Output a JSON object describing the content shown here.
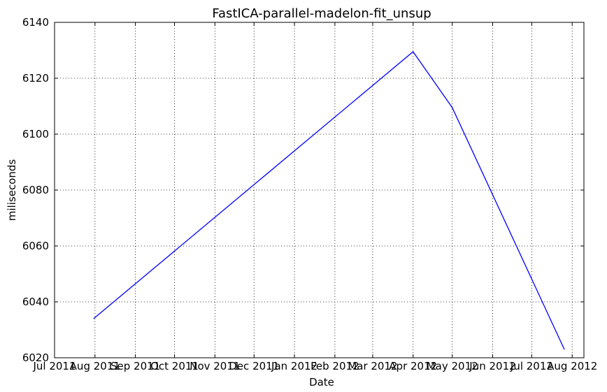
{
  "chart_data": {
    "type": "line",
    "title": "FastICA-parallel-madelon-fit_unsup",
    "xlabel": "Date",
    "ylabel": "miliseconds",
    "x_ticks": [
      "Jul 2011",
      "Aug 2011",
      "Sep 2011",
      "Oct 2011",
      "Nov 2011",
      "Dec 2011",
      "Jan 2012",
      "Feb 2012",
      "Mar 2012",
      "Apr 2012",
      "May 2012",
      "Jun 2012",
      "Jul 2012",
      "Aug 2012"
    ],
    "y_ticks": [
      "6020",
      "6040",
      "6060",
      "6080",
      "6100",
      "6120",
      "6140"
    ],
    "ylim": [
      6020,
      6140
    ],
    "grid": true,
    "series": [
      {
        "color": "#0000ff",
        "points": [
          {
            "x": "2011-07-31",
            "y": 6034
          },
          {
            "x": "2012-04-01",
            "y": 6129.5
          },
          {
            "x": "2012-05-01",
            "y": 6109.5
          },
          {
            "x": "2012-07-26",
            "y": 6023
          }
        ]
      }
    ]
  }
}
